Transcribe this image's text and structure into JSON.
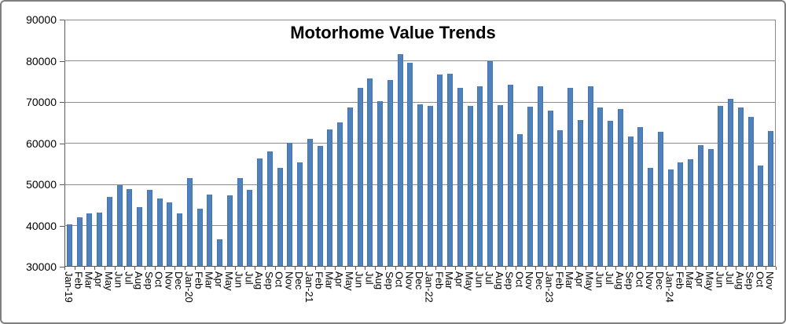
{
  "window": {
    "background_color": "#ffffff",
    "border_color": "#7f7f7f"
  },
  "chart_data": {
    "type": "bar",
    "title": "Motorhome Value Trends",
    "xlabel": "",
    "ylabel": "",
    "ylim": [
      30000,
      90000
    ],
    "ytick_step": 10000,
    "ytick_labels": [
      "30000",
      "40000",
      "50000",
      "60000",
      "70000",
      "80000",
      "90000"
    ],
    "grid": true,
    "legend": "none",
    "bar_color": "#4f81bd",
    "bar_edge_color": "#4273ac",
    "gridline_color": "#8c8c8c",
    "axis_color": "#595959",
    "text_color": "#000000",
    "categories": [
      "Jan-19",
      "Feb",
      "Mar",
      "Apr",
      "May",
      "Jun",
      "Jul",
      "Aug",
      "Sep",
      "Oct",
      "Nov",
      "Dec",
      "Jan-20",
      "Feb",
      "Mar",
      "Apr",
      "May",
      "Jun",
      "Jul",
      "Aug",
      "Sep",
      "Oct",
      "Nov",
      "Dec",
      "Jan-21",
      "Feb",
      "Mar",
      "Apr",
      "May",
      "Jun",
      "Jul",
      "Aug",
      "Sep",
      "Oct",
      "Nov",
      "Dec",
      "Jan-22",
      "Feb",
      "Mar",
      "Apr",
      "May",
      "Jun",
      "Jul",
      "Aug",
      "Sep",
      "Oct",
      "Nov",
      "Dec",
      "Jan-23",
      "Feb",
      "Mar",
      "Apr",
      "May",
      "Jun",
      "Jul",
      "Aug",
      "Sep",
      "Oct",
      "Nov",
      "Dec",
      "Jan-24",
      "Feb",
      "Mar",
      "Apr",
      "May",
      "Jun",
      "Jul",
      "Aug",
      "Sep",
      "Oct",
      "Nov"
    ],
    "values": [
      40100,
      41900,
      42800,
      43000,
      46800,
      49700,
      48600,
      44300,
      48400,
      46400,
      45500,
      42700,
      51300,
      44000,
      47400,
      36400,
      47200,
      51400,
      48500,
      56200,
      57800,
      53800,
      59900,
      55200,
      60900,
      59200,
      63200,
      64800,
      68500,
      73200,
      75600,
      70000,
      75100,
      81500,
      79300,
      69300,
      68800,
      76400,
      76600,
      73200,
      68900,
      73600,
      79700,
      69000,
      74000,
      62100,
      68700,
      73700,
      67700,
      62900,
      73300,
      65500,
      73600,
      68400,
      65300,
      68100,
      61500,
      63700,
      53900,
      62600,
      53500,
      55200,
      55900,
      59400,
      58300,
      68900,
      70500,
      68400,
      66200,
      54300,
      62700
    ]
  }
}
